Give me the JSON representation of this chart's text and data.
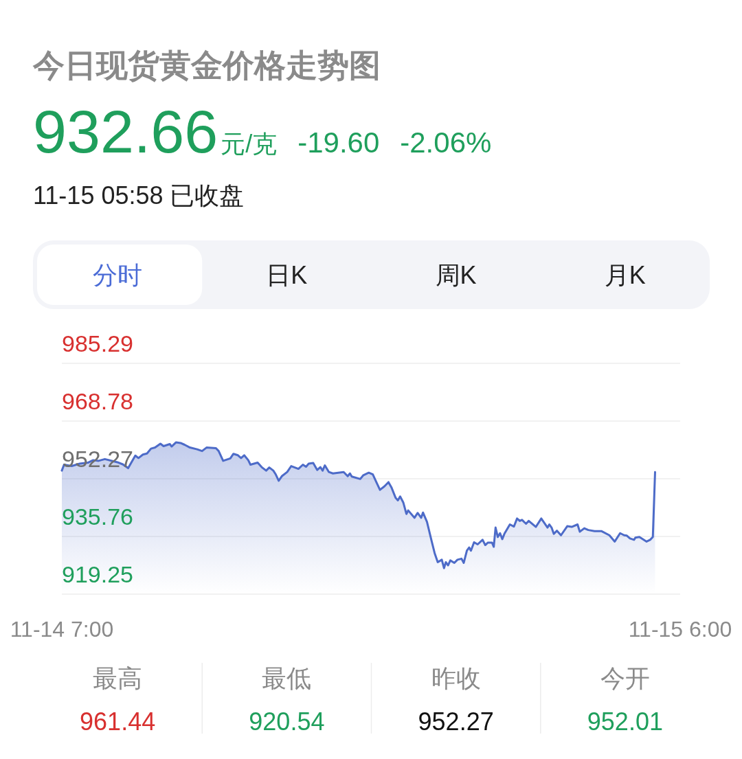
{
  "chart_data": {
    "type": "area",
    "title": "今日现货黄金价格走势图",
    "subtitle": "11-15 05:58 已收盘",
    "annotations": [
      "932.66",
      "元/克",
      "-19.60",
      "-2.06%",
      "分时",
      "日K",
      "周K",
      "月K",
      "最高",
      "961.44",
      "最低",
      "920.54",
      "昨收",
      "952.27",
      "今开",
      "952.01"
    ],
    "x": [
      "--11-14T07:00",
      "--11-14T07:05",
      "--11-14T07:22",
      "--11-14T07:40",
      "--11-14T07:59",
      "--11-14T08:10",
      "--11-14T08:22",
      "--11-14T08:36",
      "--11-14T09:04",
      "--11-14T09:16",
      "--11-14T09:28",
      "--11-14T09:35",
      "--11-14T09:44",
      "--11-14T09:51",
      "--11-14T10:01",
      "--11-14T10:10",
      "--11-14T10:19",
      "--11-14T10:28",
      "--11-14T10:40",
      "--11-14T10:47",
      "--11-14T11:01",
      "--11-14T11:05",
      "--11-14T11:15",
      "--11-14T11:25",
      "--11-14T11:34",
      "--11-14T11:46",
      "--11-14T12:02",
      "--11-14T12:13",
      "--11-14T12:23",
      "--11-14T12:44",
      "--11-14T12:50",
      "--11-14T13:00",
      "--11-14T13:16",
      "--11-14T13:23",
      "--11-14T13:33",
      "--11-14T13:40",
      "--11-14T13:47",
      "--11-14T13:56",
      "--11-14T14:01",
      "--11-14T14:17",
      "--11-14T14:26",
      "--11-14T14:36",
      "--11-14T14:43",
      "--11-14T14:52",
      "--11-14T14:57",
      "--11-14T15:04",
      "--11-14T15:11",
      "--11-14T15:23",
      "--11-14T15:32",
      "--11-14T15:48",
      "--11-14T15:58",
      "--11-14T16:05",
      "--11-14T16:11",
      "--11-14T16:21",
      "--11-14T16:30",
      "--11-14T16:37",
      "--11-14T16:42",
      "--11-14T16:47",
      "--11-14T16:56",
      "--11-14T17:05",
      "--11-14T17:29",
      "--11-14T17:38",
      "--11-14T17:43",
      "--11-14T17:47",
      "--11-14T18:06",
      "--11-14T18:13",
      "--11-14T18:25",
      "--11-14T18:34",
      "--11-14T18:43",
      "--11-14T18:50",
      "--11-14T19:00",
      "--11-14T19:09",
      "--11-14T19:16",
      "--11-14T19:25",
      "--11-14T19:30",
      "--11-14T19:35",
      "--11-14T19:42",
      "--11-14T19:49",
      "--11-14T19:53",
      "--11-14T20:07",
      "--11-14T20:14",
      "--11-14T20:22",
      "--11-14T20:26",
      "--11-14T20:35",
      "--11-14T20:45",
      "--11-14T20:52",
      "--11-14T20:59",
      "--11-14T21:08",
      "--11-14T21:13",
      "--11-14T21:17",
      "--11-14T21:22",
      "--11-14T21:27",
      "--11-14T21:36",
      "--11-14T21:43",
      "--11-14T21:52",
      "--11-14T21:57",
      "--11-14T22:04",
      "--11-14T22:09",
      "--11-14T22:13",
      "--11-14T22:20",
      "--11-14T22:28",
      "--11-14T22:39",
      "--11-14T22:45",
      "--11-14T22:51",
      "--11-14T23:00",
      "--11-14T23:04",
      "--11-14T23:08",
      "--11-14T23:13",
      "--11-14T23:18",
      "--11-14T23:23",
      "--11-14T23:28",
      "--11-14T23:40",
      "--11-14T23:49",
      "--11-14T23:56",
      "--11-15T00:02",
      "--11-15T00:07",
      "--11-15T00:16",
      "--11-15T00:22",
      "--11-15T00:38",
      "--11-15T00:50",
      "--11-15T01:04",
      "--11-15T01:08",
      "--11-15T01:13",
      "--11-15T01:18",
      "--11-15T01:25",
      "--11-15T01:34",
      "--11-15T01:48",
      "--11-15T01:58",
      "--11-15T02:11",
      "--11-15T02:16",
      "--11-15T02:26",
      "--11-15T02:35",
      "--11-15T02:49",
      "--11-15T03:04",
      "--11-15T03:22",
      "--11-15T03:34",
      "--11-15T03:46",
      "--11-15T03:55",
      "--11-15T04:01",
      "--11-15T04:08",
      "--11-15T04:17",
      "--11-15T04:20",
      "--11-15T04:29",
      "--11-15T04:45",
      "--11-15T04:53",
      "--11-15T04:59",
      "--11-15T05:04"
    ],
    "series": [
      {
        "color": "#4d6bc8",
        "values": [
          954.6,
          956.3,
          955.9,
          956.6,
          956.9,
          957.6,
          957.4,
          957.9,
          957.0,
          956.4,
          955.3,
          956.9,
          958.9,
          958.2,
          959.2,
          959.5,
          960.9,
          961.2,
          962.3,
          961.6,
          962.2,
          961.5,
          962.7,
          962.5,
          962.0,
          961.2,
          960.7,
          960.2,
          961.2,
          961.0,
          960.2,
          957.4,
          958.1,
          959.4,
          959.0,
          958.2,
          959.0,
          957.6,
          956.3,
          956.9,
          955.6,
          954.6,
          955.5,
          954.6,
          953.6,
          951.7,
          953.0,
          954.2,
          955.9,
          955.1,
          956.3,
          955.7,
          956.6,
          956.8,
          954.8,
          955.6,
          954.6,
          956.1,
          954.2,
          953.8,
          954.2,
          953.0,
          953.8,
          952.9,
          952.2,
          953.3,
          954.0,
          953.5,
          951.0,
          949.1,
          950.1,
          951.3,
          949.7,
          946.8,
          946.1,
          947.2,
          945.5,
          942.2,
          943.2,
          941.1,
          942.5,
          941.1,
          942.6,
          939.9,
          934.6,
          931.0,
          928.4,
          929.1,
          926.7,
          928.4,
          927.5,
          928.9,
          928.2,
          929.1,
          929.4,
          928.2,
          931.7,
          932.6,
          931.7,
          934.1,
          933.5,
          934.8,
          933.3,
          934.0,
          934.0,
          932.8,
          938.3,
          935.6,
          936.7,
          935.0,
          936.6,
          939.2,
          938.6,
          940.9,
          940.2,
          940.5,
          939.4,
          940.2,
          938.5,
          940.9,
          938.3,
          939.2,
          938.3,
          936.5,
          937.4,
          936.1,
          938.7,
          938.5,
          939.2,
          937.1,
          938.1,
          937.6,
          937.3,
          937.3,
          936.1,
          934.3,
          936.7,
          936.1,
          936.0,
          935.2,
          934.8,
          935.4,
          935.6,
          934.3,
          934.8,
          935.6,
          954.2
        ]
      }
    ],
    "xlim": [
      "--11-14T07:00",
      "--11-15T06:00"
    ],
    "xticks": [
      {
        "value": "--11-14T07:00",
        "label": "11-14 7:00"
      },
      {
        "value": "--11-15T06:00",
        "label": "11-15 6:00"
      }
    ],
    "ylim": [
      919.25,
      985.29
    ],
    "yticks": [
      985.29,
      968.78,
      952.27,
      935.76,
      919.25
    ],
    "grid": "y"
  }
}
